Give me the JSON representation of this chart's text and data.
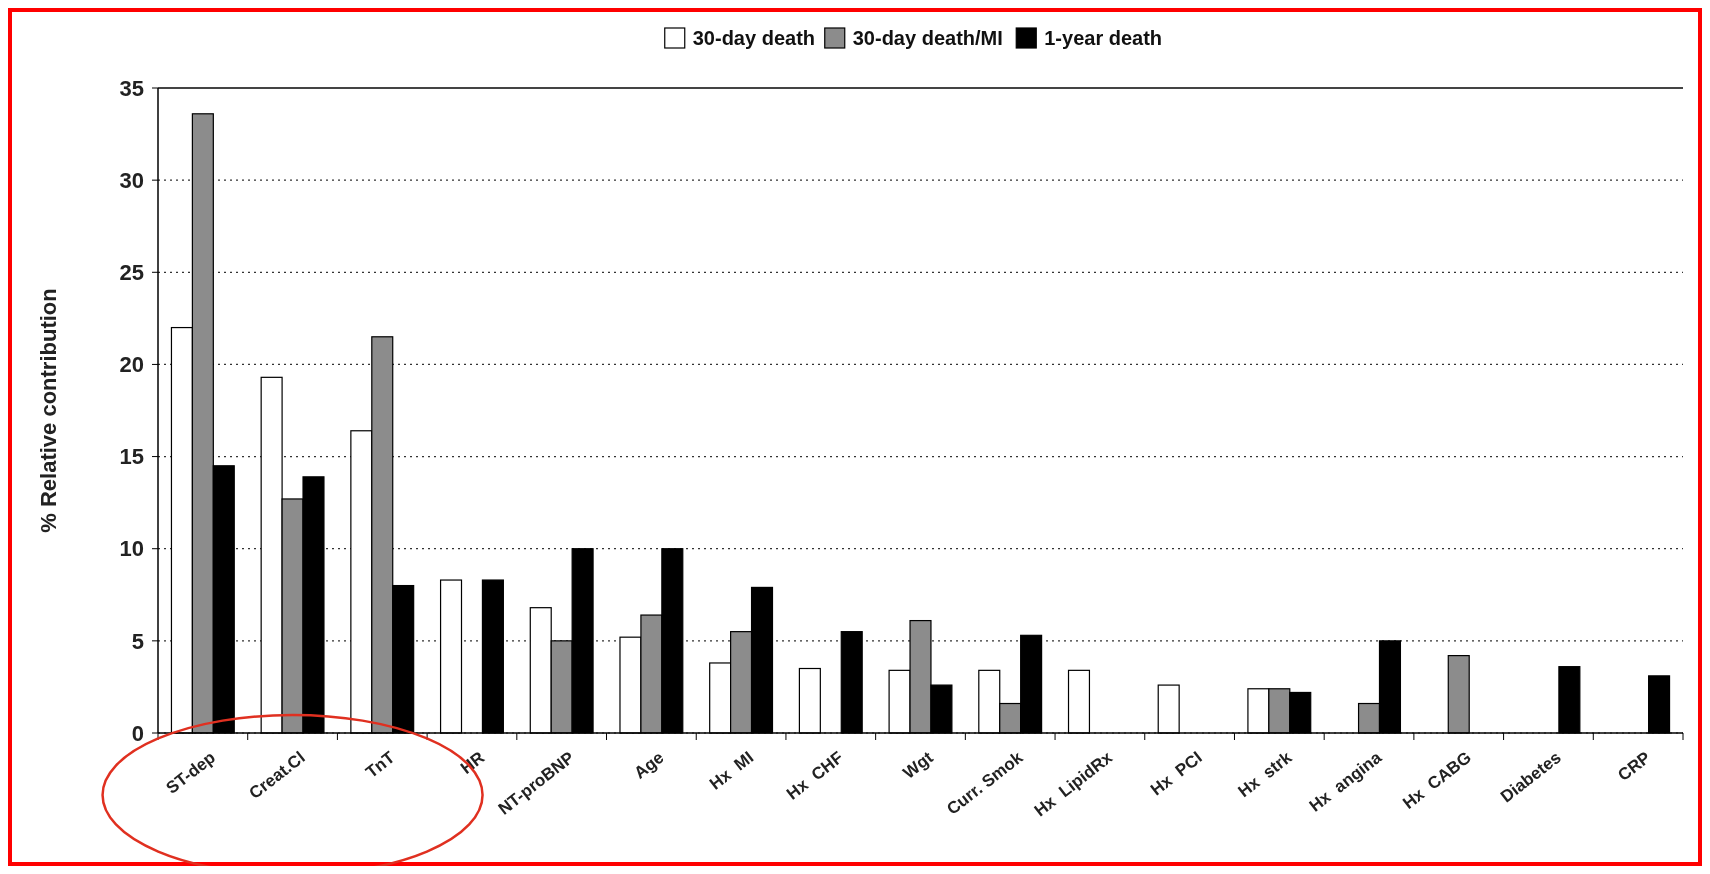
{
  "chart_data": {
    "type": "bar",
    "categories": [
      "ST-dep",
      "Creat.Cl",
      "TnT",
      "HR",
      "NT-proBNP",
      "Age",
      "Hx  MI",
      "Hx  CHF",
      "Wgt",
      "Curr. Smok",
      "Hx  LipidRx",
      "Hx  PCI",
      "Hx  strk",
      "Hx  angina",
      "Hx  CABG",
      "Diabetes",
      "CRP"
    ],
    "series": [
      {
        "name": "30-day death",
        "color": "#ffffff",
        "values": [
          22.0,
          19.3,
          16.4,
          8.3,
          6.8,
          5.2,
          3.8,
          3.5,
          3.4,
          3.4,
          3.4,
          2.6,
          2.4,
          null,
          null,
          null,
          null
        ]
      },
      {
        "name": "30-day death/MI",
        "color": "#8c8c8c",
        "values": [
          33.6,
          12.7,
          21.5,
          null,
          5.0,
          6.4,
          5.5,
          null,
          6.1,
          1.6,
          null,
          null,
          2.4,
          1.6,
          4.2,
          null,
          null
        ]
      },
      {
        "name": "1-year death",
        "color": "#000000",
        "values": [
          14.5,
          13.9,
          8.0,
          8.3,
          10.0,
          10.0,
          7.9,
          5.5,
          2.6,
          5.3,
          null,
          null,
          2.2,
          5.0,
          null,
          3.6,
          3.1
        ]
      }
    ],
    "ylabel": "% Relative contribution",
    "ylim": [
      0,
      35
    ],
    "yticks": [
      0,
      5,
      10,
      15,
      20,
      25,
      30,
      35
    ],
    "grid": "y",
    "legend": "top"
  }
}
